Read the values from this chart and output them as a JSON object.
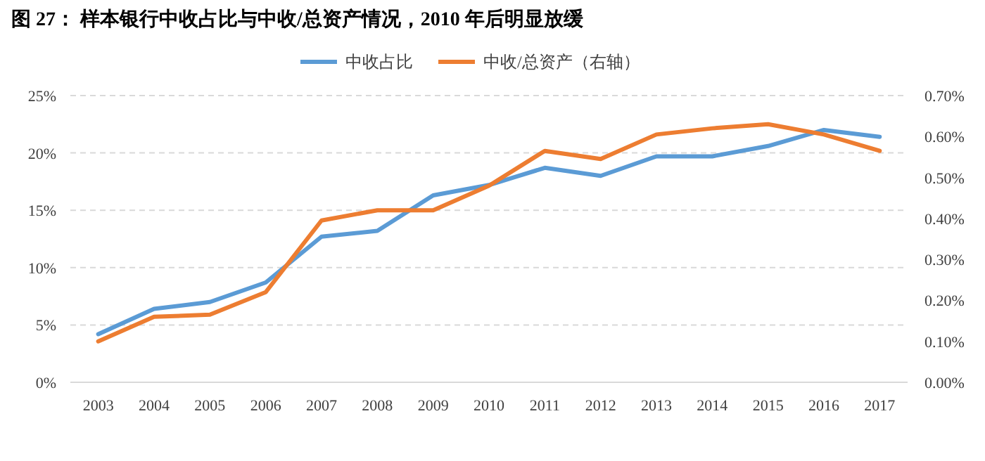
{
  "chart_data": {
    "type": "line",
    "title": "图 27：  样本银行中收占比与中收/总资产情况，2010 年后明显放缓",
    "categories": [
      "2003",
      "2004",
      "2005",
      "2006",
      "2007",
      "2008",
      "2009",
      "2010",
      "2011",
      "2012",
      "2013",
      "2014",
      "2015",
      "2016",
      "2017"
    ],
    "series": [
      {
        "name": "中收占比",
        "color": "#5b9bd5",
        "values": [
          4.2,
          6.4,
          7.0,
          8.7,
          12.7,
          13.2,
          16.3,
          17.2,
          18.7,
          18.0,
          19.7,
          19.7,
          20.6,
          22.0,
          21.4
        ]
      },
      {
        "name": "中收/总资产（右轴）",
        "color": "#ed7d31",
        "axis": "y2",
        "values": [
          0.1,
          0.16,
          0.165,
          0.22,
          0.395,
          0.42,
          0.42,
          0.48,
          0.565,
          0.545,
          0.605,
          0.62,
          0.63,
          0.605,
          0.565
        ]
      }
    ],
    "ylim": [
      0,
      25
    ],
    "yticks": [
      {
        "value": 0,
        "label": "0%"
      },
      {
        "value": 5,
        "label": "5%"
      },
      {
        "value": 10,
        "label": "10%"
      },
      {
        "value": 15,
        "label": "15%"
      },
      {
        "value": 20,
        "label": "20%"
      },
      {
        "value": 25,
        "label": "25%"
      }
    ],
    "y2lim": [
      0,
      0.7
    ],
    "y2ticks": [
      {
        "value": 0,
        "label": "0.00%"
      },
      {
        "value": 0.1,
        "label": "0.10%"
      },
      {
        "value": 0.2,
        "label": "0.20%"
      },
      {
        "value": 0.3,
        "label": "0.30%"
      },
      {
        "value": 0.4,
        "label": "0.40%"
      },
      {
        "value": 0.5,
        "label": "0.50%"
      },
      {
        "value": 0.6,
        "label": "0.60%"
      },
      {
        "value": 0.7,
        "label": "0.70%"
      }
    ],
    "grid": "y",
    "legend": "top",
    "line_style": "solid",
    "marker": "none"
  }
}
